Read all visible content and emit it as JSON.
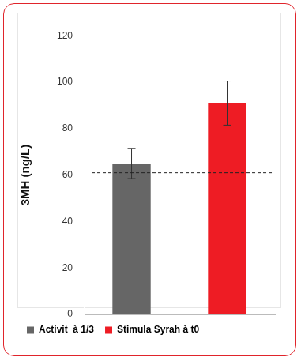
{
  "chart_data": {
    "type": "bar",
    "y_label": "3MH (ng/L)",
    "categories": [
      "Activit  à 1/3",
      "Stimula Syrah à t0"
    ],
    "values": [
      65,
      91
    ],
    "errors": [
      6.5,
      9.5
    ],
    "colors": [
      "#666666",
      "#ee1c24"
    ],
    "reference_line": {
      "value": 61,
      "line_style": "dashed"
    },
    "ylim": [
      0,
      120
    ],
    "yticks": [
      0,
      20,
      40,
      60,
      80,
      100,
      120
    ],
    "grid": false,
    "legend": "bottom",
    "tick_labels": "y"
  }
}
